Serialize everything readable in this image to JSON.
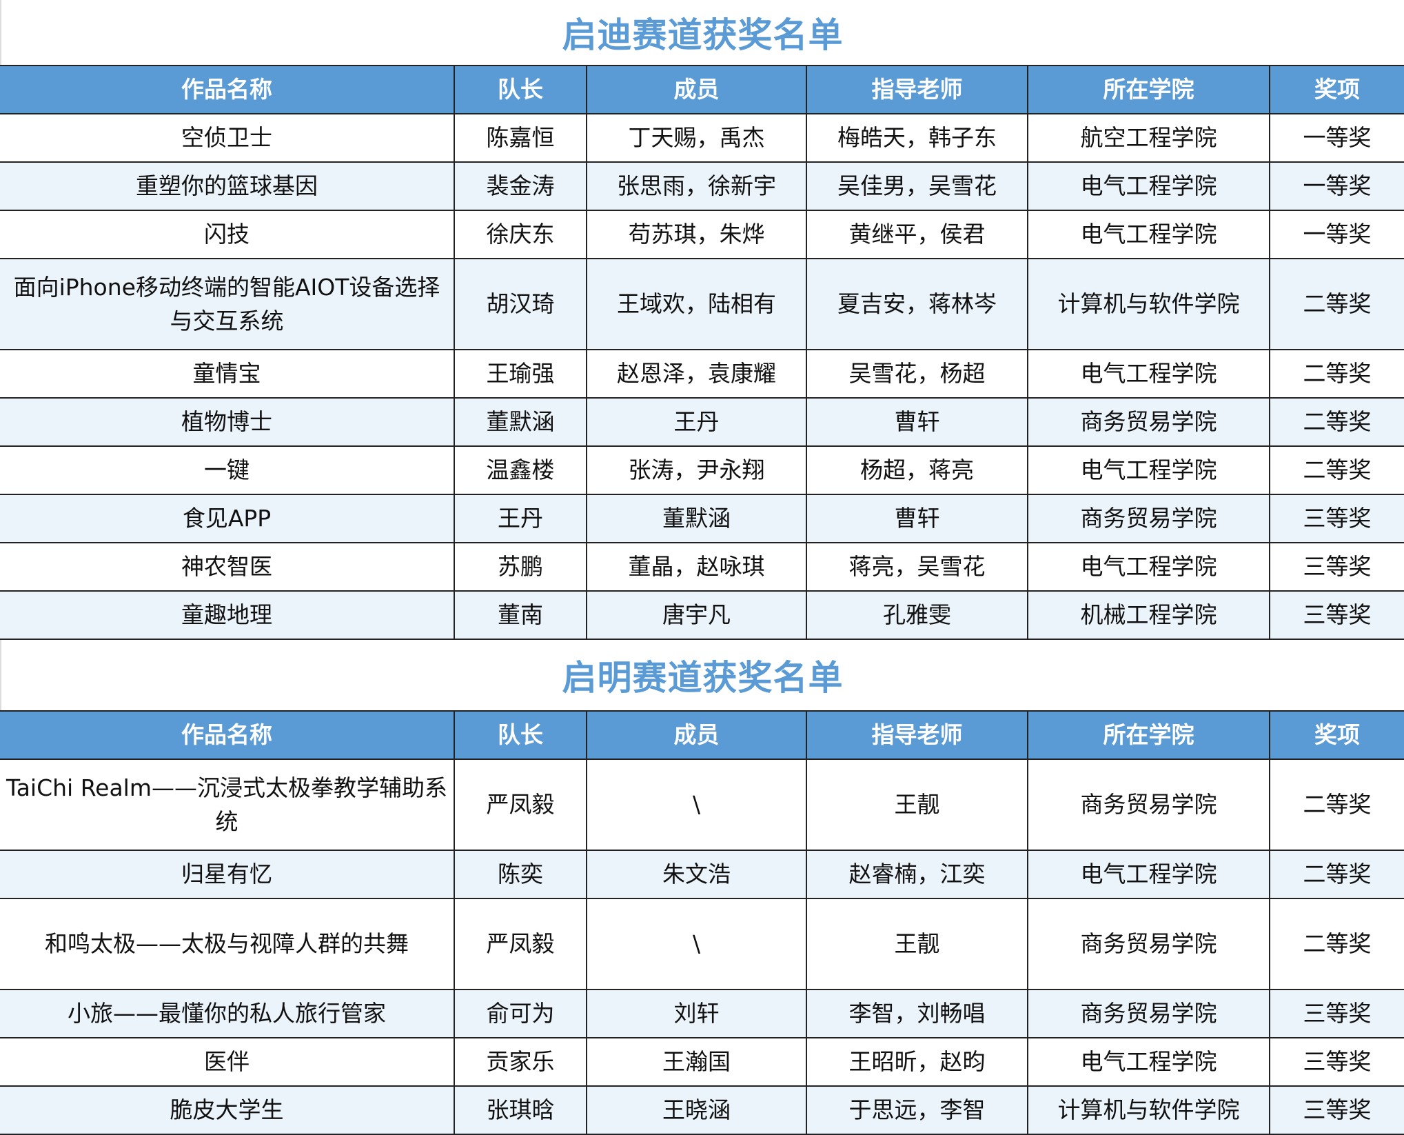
{
  "colors": {
    "header_bg": "#5b9bd5",
    "title": "#5b9bd5",
    "alt_row": "#ebf3fb"
  },
  "columns": [
    "作品名称",
    "队长",
    "成员",
    "指导老师",
    "所在学院",
    "奖项"
  ],
  "sections": [
    {
      "title": "启迪赛道获奖名单",
      "rows": [
        [
          "空侦卫士",
          "陈嘉恒",
          "丁天赐，禹杰",
          "梅皓天，韩子东",
          "航空工程学院",
          "一等奖"
        ],
        [
          "重塑你的篮球基因",
          "裴金涛",
          "张思雨，徐新宇",
          "吴佳男，吴雪花",
          "电气工程学院",
          "一等奖"
        ],
        [
          "闪技",
          "徐庆东",
          "苟苏琪，朱烨",
          "黄继平，侯君",
          "电气工程学院",
          "一等奖"
        ],
        [
          "面向iPhone移动终端的智能AIOT设备选择与交互系统",
          "胡汉琦",
          "王域欢，陆相有",
          "夏吉安，蒋林岑",
          "计算机与软件学院",
          "二等奖"
        ],
        [
          "童情宝",
          "王瑜强",
          "赵恩泽，袁康耀",
          "吴雪花，杨超",
          "电气工程学院",
          "二等奖"
        ],
        [
          "植物博士",
          "董默涵",
          "王丹",
          "曹轩",
          "商务贸易学院",
          "二等奖"
        ],
        [
          "一键",
          "温鑫楼",
          "张涛，尹永翔",
          "杨超，蒋亮",
          "电气工程学院",
          "二等奖"
        ],
        [
          "食见APP",
          "王丹",
          "董默涵",
          "曹轩",
          "商务贸易学院",
          "三等奖"
        ],
        [
          "神农智医",
          "苏鹏",
          "董晶，赵咏琪",
          "蒋亮，吴雪花",
          "电气工程学院",
          "三等奖"
        ],
        [
          "童趣地理",
          "董南",
          "唐宇凡",
          "孔雅雯",
          "机械工程学院",
          "三等奖"
        ]
      ]
    },
    {
      "title": "启明赛道获奖名单",
      "rows": [
        [
          "TaiChi Realm——沉浸式太极拳教学辅助系统",
          "严凤毅",
          "\\",
          "王靓",
          "商务贸易学院",
          "二等奖"
        ],
        [
          "归星有忆",
          "陈奕",
          "朱文浩",
          "赵睿楠，江奕",
          "电气工程学院",
          "二等奖"
        ],
        [
          "和鸣太极——太极与视障人群的共舞",
          "严凤毅",
          "\\",
          "王靓",
          "商务贸易学院",
          "二等奖"
        ],
        [
          "小旅——最懂你的私人旅行管家",
          "俞可为",
          "刘轩",
          "李智，刘畅唱",
          "商务贸易学院",
          "三等奖"
        ],
        [
          "医伴",
          "贡家乐",
          "王瀚国",
          "王昭昕，赵昀",
          "电气工程学院",
          "三等奖"
        ],
        [
          "脆皮大学生",
          "张琪晗",
          "王晓涵",
          "于思远，李智",
          "计算机与软件学院",
          "三等奖"
        ]
      ]
    }
  ]
}
